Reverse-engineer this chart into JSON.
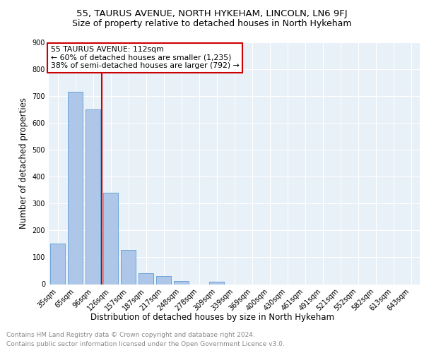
{
  "title": "55, TAURUS AVENUE, NORTH HYKEHAM, LINCOLN, LN6 9FJ",
  "subtitle": "Size of property relative to detached houses in North Hykeham",
  "xlabel": "Distribution of detached houses by size in North Hykeham",
  "ylabel": "Number of detached properties",
  "categories": [
    "35sqm",
    "65sqm",
    "96sqm",
    "126sqm",
    "157sqm",
    "187sqm",
    "217sqm",
    "248sqm",
    "278sqm",
    "309sqm",
    "339sqm",
    "369sqm",
    "400sqm",
    "430sqm",
    "461sqm",
    "491sqm",
    "521sqm",
    "552sqm",
    "582sqm",
    "613sqm",
    "643sqm"
  ],
  "values": [
    150,
    715,
    650,
    340,
    128,
    42,
    30,
    12,
    0,
    8,
    0,
    0,
    0,
    0,
    0,
    0,
    0,
    0,
    0,
    0,
    0
  ],
  "bar_color": "#aec6e8",
  "bar_edge_color": "#5b9bd5",
  "vline_x": 2.5,
  "vline_color": "#cc0000",
  "annotation_line1": "55 TAURUS AVENUE: 112sqm",
  "annotation_line2": "← 60% of detached houses are smaller (1,235)",
  "annotation_line3": "38% of semi-detached houses are larger (792) →",
  "annotation_box_color": "#ffffff",
  "annotation_box_edge": "#cc0000",
  "ylim": [
    0,
    900
  ],
  "yticks": [
    0,
    100,
    200,
    300,
    400,
    500,
    600,
    700,
    800,
    900
  ],
  "plot_bg_color": "#e8f0f8",
  "footer_line1": "Contains HM Land Registry data © Crown copyright and database right 2024.",
  "footer_line2": "Contains public sector information licensed under the Open Government Licence v3.0.",
  "title_fontsize": 9.5,
  "subtitle_fontsize": 9,
  "tick_fontsize": 7,
  "ylabel_fontsize": 8.5,
  "xlabel_fontsize": 8.5,
  "annotation_fontsize": 7.8,
  "footer_fontsize": 6.5
}
